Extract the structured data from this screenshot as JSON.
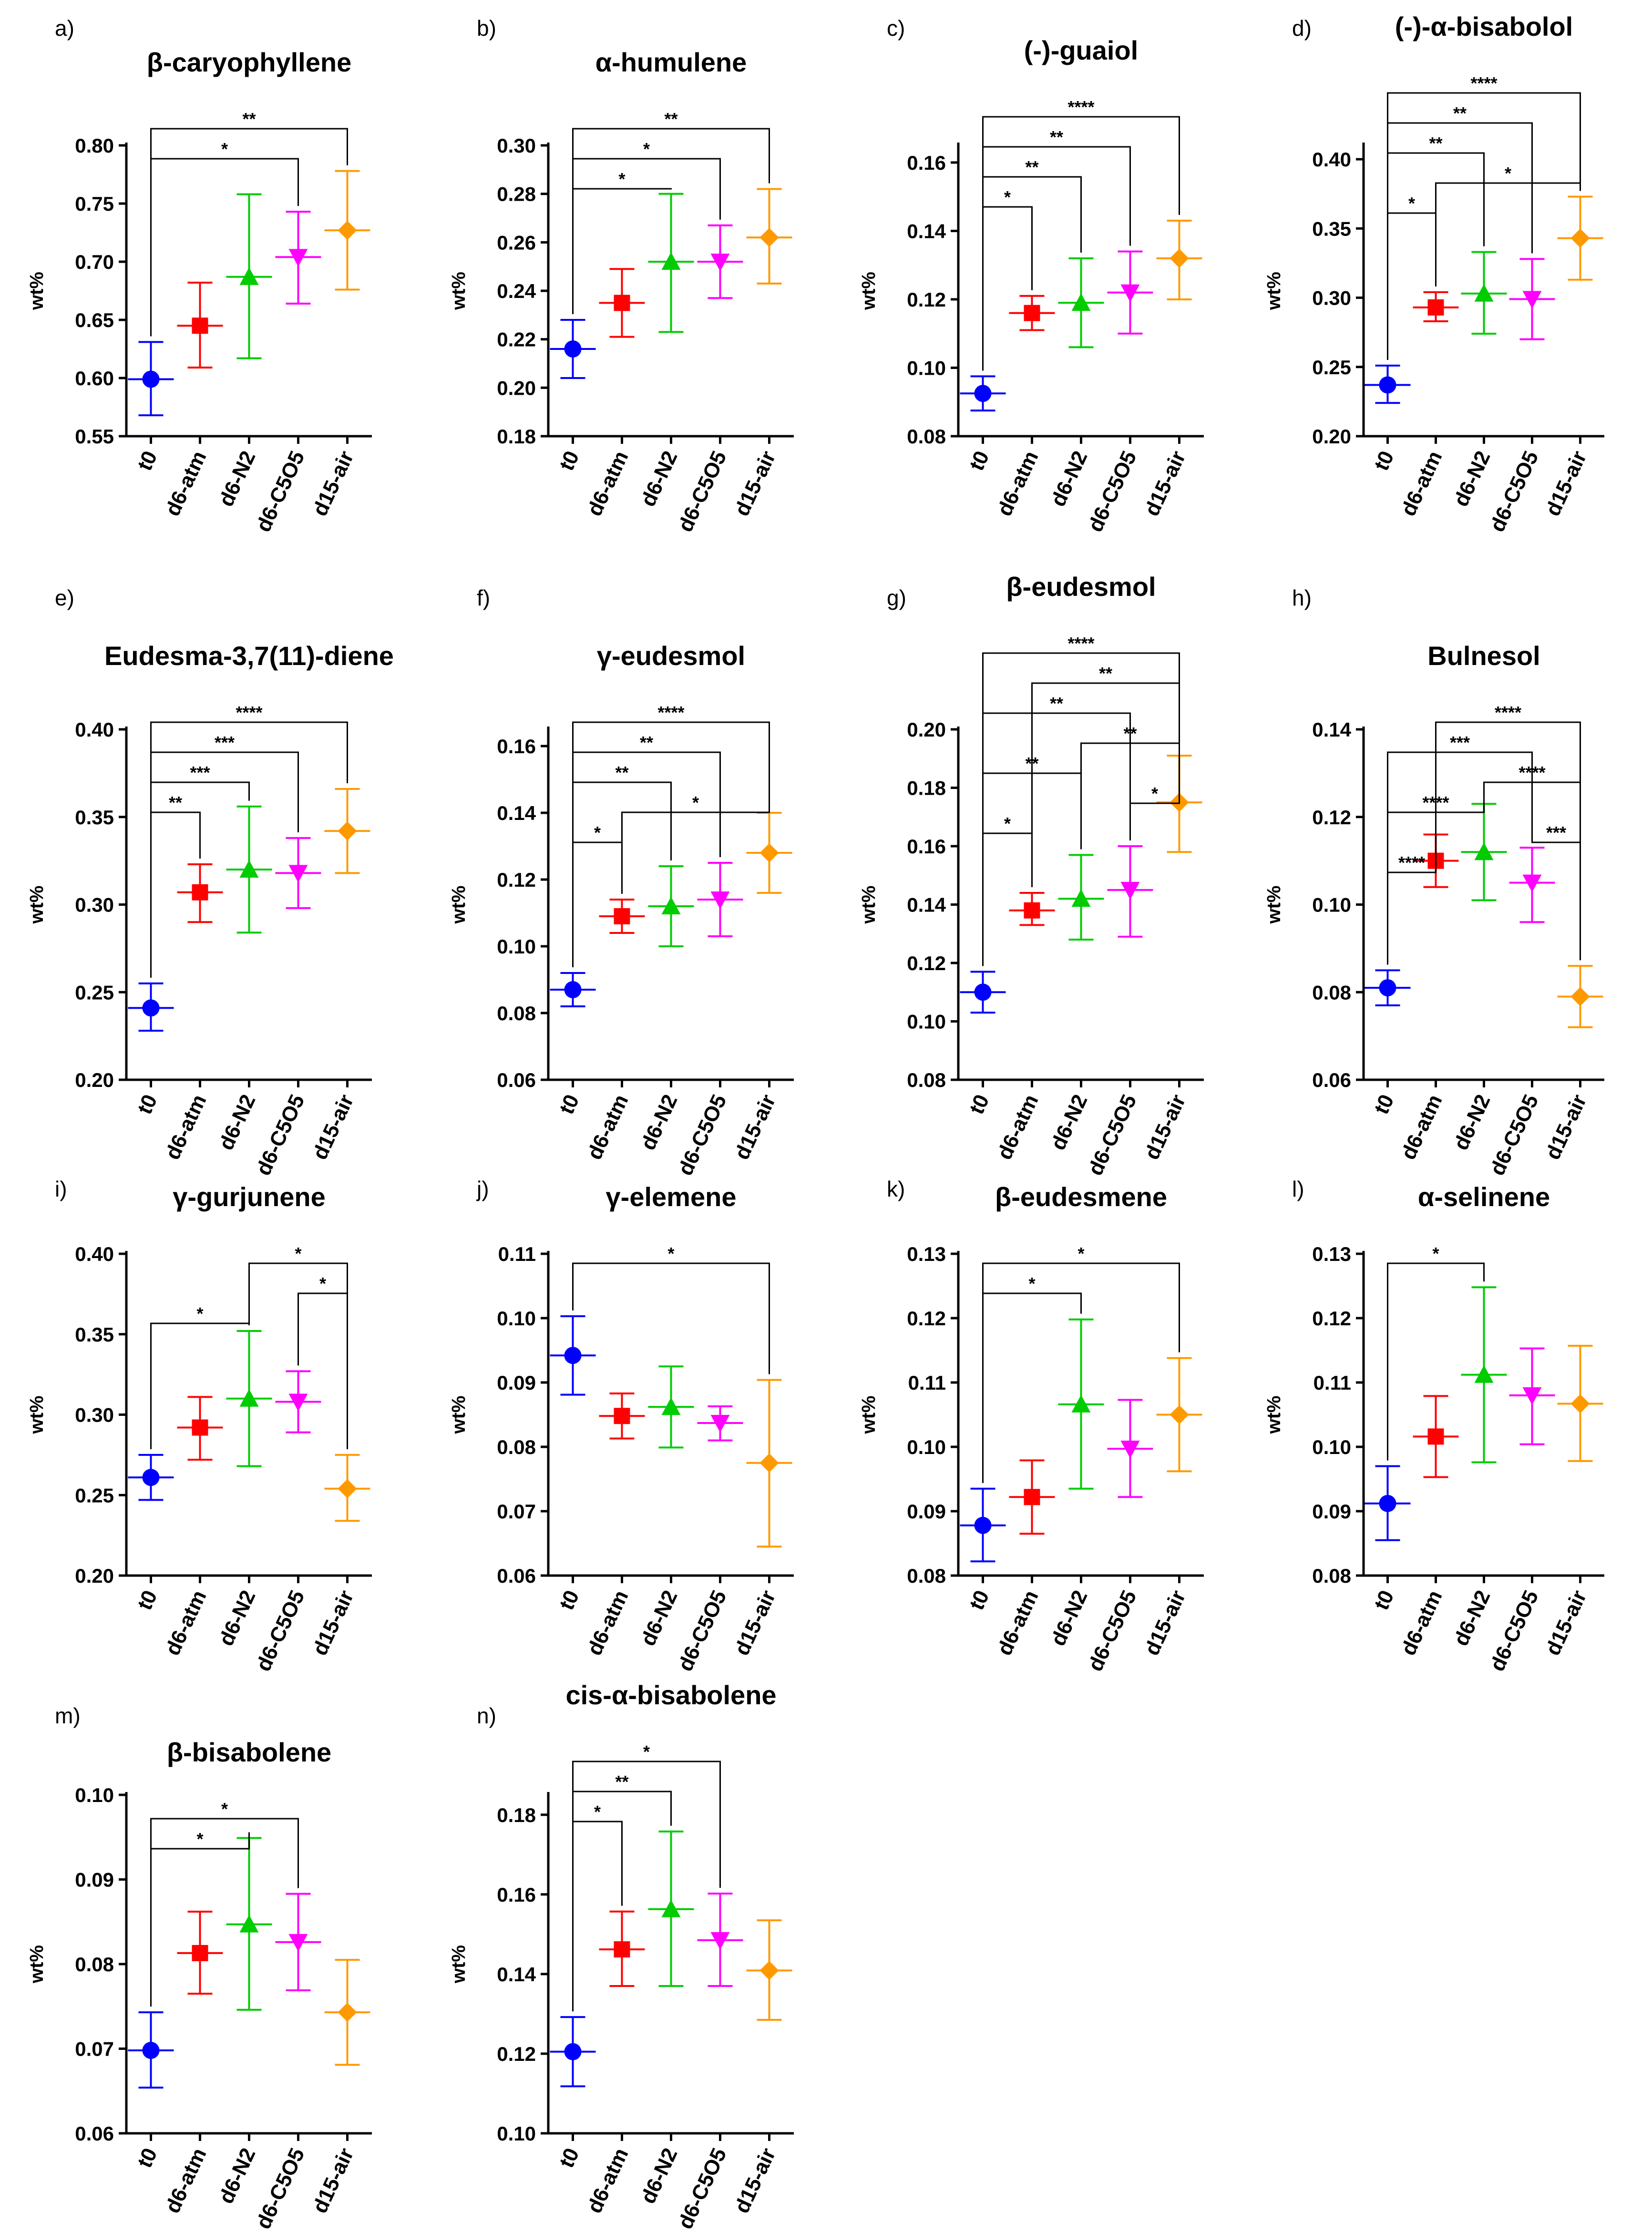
{
  "figure": {
    "groups": [
      "t0",
      "d6-atm",
      "d6-N2",
      "d6-C5O5",
      "d15-air"
    ],
    "series_colors": [
      "#0000ff",
      "#ff0000",
      "#00cc00",
      "#ff00ff",
      "#ff9900"
    ],
    "series_markers": [
      "circle",
      "square",
      "triangle-up",
      "triangle-down",
      "diamond"
    ],
    "ylabel": "wt%"
  },
  "chart_data": [
    {
      "type": "scatter",
      "panel": "a)",
      "title": "β-caryophyllene",
      "ylabel": "wt%",
      "ylim": [
        0.55,
        0.8
      ],
      "yticks": [
        "0.55",
        "0.60",
        "0.65",
        "0.70",
        "0.75",
        "0.80"
      ],
      "means": [
        0.599,
        0.645,
        0.687,
        0.704,
        0.727
      ],
      "err_low": [
        0.568,
        0.609,
        0.617,
        0.664,
        0.676
      ],
      "err_high": [
        0.631,
        0.682,
        0.758,
        0.743,
        0.778
      ],
      "significance": [
        {
          "a": 0,
          "b": 3,
          "label": "*"
        },
        {
          "a": 0,
          "b": 4,
          "label": "**"
        }
      ]
    },
    {
      "type": "scatter",
      "panel": "b)",
      "title": "α-humulene",
      "ylabel": "wt%",
      "ylim": [
        0.18,
        0.3
      ],
      "yticks": [
        "0.18",
        "0.20",
        "0.22",
        "0.24",
        "0.26",
        "0.28",
        "0.30"
      ],
      "means": [
        0.216,
        0.235,
        0.252,
        0.252,
        0.262
      ],
      "err_low": [
        0.204,
        0.221,
        0.223,
        0.237,
        0.243
      ],
      "err_high": [
        0.228,
        0.249,
        0.28,
        0.267,
        0.282
      ],
      "significance": [
        {
          "a": 0,
          "b": 2,
          "label": "*"
        },
        {
          "a": 0,
          "b": 3,
          "label": "*"
        },
        {
          "a": 0,
          "b": 4,
          "label": "**"
        }
      ]
    },
    {
      "type": "scatter",
      "panel": "c)",
      "title": "(-)-guaiol",
      "ylabel": "wt%",
      "ylim": [
        0.08,
        0.165
      ],
      "yticks": [
        "0.08",
        "0.10",
        "0.12",
        "0.14",
        "0.16"
      ],
      "means": [
        0.0925,
        0.116,
        0.119,
        0.122,
        0.132
      ],
      "err_low": [
        0.0875,
        0.111,
        0.106,
        0.11,
        0.12
      ],
      "err_high": [
        0.0975,
        0.121,
        0.132,
        0.134,
        0.143
      ],
      "significance": [
        {
          "a": 0,
          "b": 1,
          "label": "*"
        },
        {
          "a": 0,
          "b": 2,
          "label": "**"
        },
        {
          "a": 0,
          "b": 3,
          "label": "**"
        },
        {
          "a": 0,
          "b": 4,
          "label": "****"
        }
      ]
    },
    {
      "type": "scatter",
      "panel": "d)",
      "title": "(-)-α-bisabolol",
      "ylabel": "wt%",
      "ylim": [
        0.2,
        0.41
      ],
      "yticks": [
        "0.20",
        "0.25",
        "0.30",
        "0.35",
        "0.40"
      ],
      "means": [
        0.237,
        0.293,
        0.303,
        0.299,
        0.343
      ],
      "err_low": [
        0.224,
        0.283,
        0.274,
        0.27,
        0.313
      ],
      "err_high": [
        0.251,
        0.304,
        0.333,
        0.328,
        0.373
      ],
      "significance": [
        {
          "a": 0,
          "b": 1,
          "label": "*"
        },
        {
          "a": 1,
          "b": 4,
          "label": "*"
        },
        {
          "a": 0,
          "b": 2,
          "label": "**"
        },
        {
          "a": 0,
          "b": 3,
          "label": "**"
        },
        {
          "a": 0,
          "b": 4,
          "label": "****"
        }
      ]
    },
    {
      "type": "scatter",
      "panel": "e)",
      "title": "Eudesma-3,7(11)-diene",
      "ylabel": "wt%",
      "ylim": [
        0.2,
        0.4
      ],
      "yticks": [
        "0.20",
        "0.25",
        "0.30",
        "0.35",
        "0.40"
      ],
      "means": [
        0.241,
        0.307,
        0.32,
        0.318,
        0.342
      ],
      "err_low": [
        0.228,
        0.29,
        0.284,
        0.298,
        0.318
      ],
      "err_high": [
        0.255,
        0.323,
        0.356,
        0.338,
        0.366
      ],
      "significance": [
        {
          "a": 0,
          "b": 1,
          "label": "**"
        },
        {
          "a": 0,
          "b": 2,
          "label": "***"
        },
        {
          "a": 0,
          "b": 3,
          "label": "***"
        },
        {
          "a": 0,
          "b": 4,
          "label": "****"
        }
      ]
    },
    {
      "type": "scatter",
      "panel": "f)",
      "title": "γ-eudesmol",
      "ylabel": "wt%",
      "ylim": [
        0.06,
        0.165
      ],
      "yticks": [
        "0.06",
        "0.08",
        "0.10",
        "0.12",
        "0.14",
        "0.16"
      ],
      "means": [
        0.087,
        0.109,
        0.112,
        0.114,
        0.128
      ],
      "err_low": [
        0.082,
        0.104,
        0.1,
        0.103,
        0.116
      ],
      "err_high": [
        0.092,
        0.114,
        0.124,
        0.125,
        0.14
      ],
      "significance": [
        {
          "a": 0,
          "b": 1,
          "label": "*"
        },
        {
          "a": 1,
          "b": 4,
          "label": "*"
        },
        {
          "a": 0,
          "b": 2,
          "label": "**"
        },
        {
          "a": 0,
          "b": 3,
          "label": "**"
        },
        {
          "a": 0,
          "b": 4,
          "label": "****"
        }
      ]
    },
    {
      "type": "scatter",
      "panel": "g)",
      "title": "β-eudesmol",
      "ylabel": "wt%",
      "ylim": [
        0.08,
        0.2
      ],
      "yticks": [
        "0.08",
        "0.10",
        "0.12",
        "0.14",
        "0.16",
        "0.18",
        "0.20"
      ],
      "means": [
        0.11,
        0.138,
        0.142,
        0.145,
        0.175
      ],
      "err_low": [
        0.103,
        0.133,
        0.128,
        0.129,
        0.158
      ],
      "err_high": [
        0.117,
        0.144,
        0.157,
        0.16,
        0.191
      ],
      "significance": [
        {
          "a": 0,
          "b": 1,
          "label": "*"
        },
        {
          "a": 3,
          "b": 4,
          "label": "*"
        },
        {
          "a": 0,
          "b": 2,
          "label": "**"
        },
        {
          "a": 2,
          "b": 4,
          "label": "**"
        },
        {
          "a": 0,
          "b": 3,
          "label": "**"
        },
        {
          "a": 1,
          "b": 4,
          "label": "**"
        },
        {
          "a": 0,
          "b": 4,
          "label": "****"
        }
      ]
    },
    {
      "type": "scatter",
      "panel": "h)",
      "title": "Bulnesol",
      "ylabel": "wt%",
      "ylim": [
        0.06,
        0.14
      ],
      "yticks": [
        "0.06",
        "0.08",
        "0.10",
        "0.12",
        "0.14"
      ],
      "means": [
        0.081,
        0.11,
        0.112,
        0.105,
        0.079
      ],
      "err_low": [
        0.077,
        0.104,
        0.101,
        0.096,
        0.072
      ],
      "err_high": [
        0.085,
        0.116,
        0.123,
        0.113,
        0.086
      ],
      "significance": [
        {
          "a": 0,
          "b": 1,
          "label": "****"
        },
        {
          "a": 3,
          "b": 4,
          "label": "***"
        },
        {
          "a": 0,
          "b": 2,
          "label": "****"
        },
        {
          "a": 2,
          "b": 4,
          "label": "****"
        },
        {
          "a": 0,
          "b": 3,
          "label": "***"
        },
        {
          "a": 1,
          "b": 4,
          "label": "****"
        }
      ]
    },
    {
      "type": "scatter",
      "panel": "i)",
      "title": "γ-gurjunene",
      "ylabel": "wt%",
      "ylim": [
        0.2,
        0.4
      ],
      "yticks": [
        "0.20",
        "0.25",
        "0.30",
        "0.35",
        "0.40"
      ],
      "means": [
        0.261,
        0.292,
        0.31,
        0.308,
        0.254
      ],
      "err_low": [
        0.247,
        0.272,
        0.268,
        0.289,
        0.234
      ],
      "err_high": [
        0.275,
        0.311,
        0.352,
        0.327,
        0.275
      ],
      "significance": [
        {
          "a": 0,
          "b": 2,
          "label": "*"
        },
        {
          "a": 3,
          "b": 4,
          "label": "*"
        },
        {
          "a": 2,
          "b": 4,
          "label": "*"
        }
      ]
    },
    {
      "type": "scatter",
      "panel": "j)",
      "title": "γ-elemene",
      "ylabel": "wt%",
      "ylim": [
        0.06,
        0.11
      ],
      "yticks": [
        "0.06",
        "0.07",
        "0.08",
        "0.09",
        "0.10",
        "0.11"
      ],
      "means": [
        0.0942,
        0.0848,
        0.0862,
        0.0837,
        0.0775
      ],
      "err_low": [
        0.0881,
        0.0813,
        0.0799,
        0.081,
        0.0645
      ],
      "err_high": [
        0.1003,
        0.0883,
        0.0925,
        0.0863,
        0.0904
      ],
      "significance": [
        {
          "a": 0,
          "b": 4,
          "label": "*"
        }
      ]
    },
    {
      "type": "scatter",
      "panel": "k)",
      "title": "β-eudesmene",
      "ylabel": "wt%",
      "ylim": [
        0.08,
        0.13
      ],
      "yticks": [
        "0.08",
        "0.09",
        "0.10",
        "0.11",
        "0.12",
        "0.13"
      ],
      "means": [
        0.0878,
        0.0922,
        0.1066,
        0.0997,
        0.105
      ],
      "err_low": [
        0.0822,
        0.0865,
        0.0935,
        0.0922,
        0.0962
      ],
      "err_high": [
        0.0935,
        0.0979,
        0.1198,
        0.1073,
        0.1138
      ],
      "significance": [
        {
          "a": 0,
          "b": 2,
          "label": "*"
        },
        {
          "a": 0,
          "b": 4,
          "label": "*"
        }
      ]
    },
    {
      "type": "scatter",
      "panel": "l)",
      "title": "α-selinene",
      "ylabel": "wt%",
      "ylim": [
        0.08,
        0.13
      ],
      "yticks": [
        "0.08",
        "0.09",
        "0.10",
        "0.11",
        "0.12",
        "0.13"
      ],
      "means": [
        0.0912,
        0.1016,
        0.1112,
        0.108,
        0.1067
      ],
      "err_low": [
        0.0855,
        0.0953,
        0.0976,
        0.1004,
        0.0978
      ],
      "err_high": [
        0.097,
        0.1079,
        0.1248,
        0.1153,
        0.1157
      ],
      "significance": [
        {
          "a": 0,
          "b": 2,
          "label": "*"
        }
      ]
    },
    {
      "type": "scatter",
      "panel": "m)",
      "title": "β-bisabolene",
      "ylabel": "wt%",
      "ylim": [
        0.06,
        0.1
      ],
      "yticks": [
        "0.06",
        "0.07",
        "0.08",
        "0.09",
        "0.10"
      ],
      "means": [
        0.0698,
        0.0813,
        0.0847,
        0.0826,
        0.0743
      ],
      "err_low": [
        0.0654,
        0.0765,
        0.0746,
        0.0769,
        0.0681
      ],
      "err_high": [
        0.0743,
        0.0862,
        0.0949,
        0.0883,
        0.0805
      ],
      "significance": [
        {
          "a": 0,
          "b": 2,
          "label": "*"
        },
        {
          "a": 0,
          "b": 3,
          "label": "*"
        }
      ]
    },
    {
      "type": "scatter",
      "panel": "n)",
      "title": "cis-α-bisabolene",
      "ylabel": "wt%",
      "ylim": [
        0.1,
        0.185
      ],
      "yticks": [
        "0.10",
        "0.12",
        "0.14",
        "0.16",
        "0.18"
      ],
      "means": [
        0.1205,
        0.1462,
        0.1563,
        0.1485,
        0.1409
      ],
      "err_low": [
        0.1118,
        0.137,
        0.137,
        0.137,
        0.1285
      ],
      "err_high": [
        0.1292,
        0.1557,
        0.1758,
        0.1602,
        0.1535
      ],
      "significance": [
        {
          "a": 0,
          "b": 1,
          "label": "*"
        },
        {
          "a": 0,
          "b": 2,
          "label": "**"
        },
        {
          "a": 0,
          "b": 3,
          "label": "*"
        }
      ]
    }
  ]
}
